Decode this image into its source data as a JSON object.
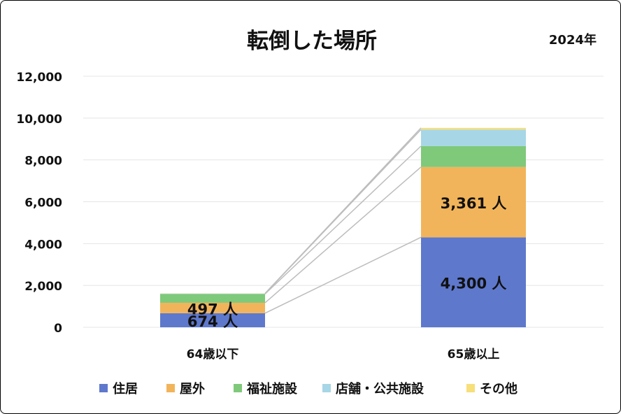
{
  "chart_data": {
    "type": "bar",
    "stacked": true,
    "title": "転倒した場所",
    "subtitle": "2024年",
    "categories": [
      "64歳以下",
      "65歳以上"
    ],
    "ylim": [
      0,
      12000
    ],
    "yticks": [
      0,
      2000,
      4000,
      6000,
      8000,
      10000,
      12000
    ],
    "ytick_labels": [
      "0",
      "2,000",
      "4,000",
      "6,000",
      "8,000",
      "10,000",
      "12,000"
    ],
    "grid": true,
    "legend_position": "bottom",
    "value_unit": "人",
    "series": [
      {
        "name": "住居",
        "color": "#5e78cc",
        "values": [
          674,
          4300
        ],
        "labels": [
          "674 人",
          "4,300 人"
        ]
      },
      {
        "name": "屋外",
        "color": "#f2b45a",
        "values": [
          497,
          3361
        ],
        "labels": [
          "497 人",
          "3,361 人"
        ]
      },
      {
        "name": "福祉施設",
        "color": "#7fc97a",
        "values": [
          420,
          1000
        ],
        "labels": [
          "",
          ""
        ]
      },
      {
        "name": "店舗・公共施設",
        "color": "#a7d6e6",
        "values": [
          20,
          790
        ],
        "labels": [
          "",
          ""
        ]
      },
      {
        "name": "その他",
        "color": "#f7df7a",
        "values": [
          10,
          80
        ],
        "labels": [
          "",
          ""
        ]
      }
    ],
    "series_lines": true
  }
}
